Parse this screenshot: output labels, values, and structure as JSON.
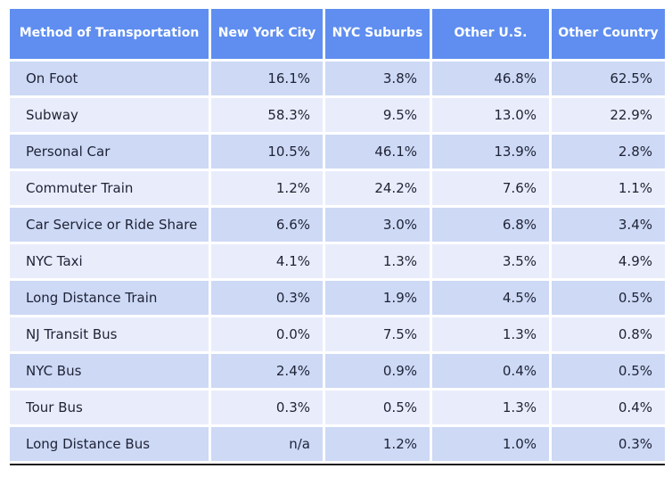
{
  "table": {
    "columns": [
      "Method of Transportation",
      "New York City",
      "NYC Suburbs",
      "Other U.S.",
      "Other Country"
    ],
    "rows": [
      {
        "label": "On Foot",
        "values": [
          "16.1%",
          "3.8%",
          "46.8%",
          "62.5%"
        ]
      },
      {
        "label": "Subway",
        "values": [
          "58.3%",
          "9.5%",
          "13.0%",
          "22.9%"
        ]
      },
      {
        "label": "Personal Car",
        "values": [
          "10.5%",
          "46.1%",
          "13.9%",
          "2.8%"
        ]
      },
      {
        "label": "Commuter Train",
        "values": [
          "1.2%",
          "24.2%",
          "7.6%",
          "1.1%"
        ]
      },
      {
        "label": "Car Service or Ride Share",
        "values": [
          "6.6%",
          "3.0%",
          "6.8%",
          "3.4%"
        ]
      },
      {
        "label": "NYC Taxi",
        "values": [
          "4.1%",
          "1.3%",
          "3.5%",
          "4.9%"
        ]
      },
      {
        "label": "Long Distance Train",
        "values": [
          "0.3%",
          "1.9%",
          "4.5%",
          "0.5%"
        ]
      },
      {
        "label": "NJ Transit Bus",
        "values": [
          "0.0%",
          "7.5%",
          "1.3%",
          "0.8%"
        ]
      },
      {
        "label": "NYC Bus",
        "values": [
          "2.4%",
          "0.9%",
          "0.4%",
          "0.5%"
        ]
      },
      {
        "label": "Tour Bus",
        "values": [
          "0.3%",
          "0.5%",
          "1.3%",
          "0.4%"
        ]
      },
      {
        "label": "Long Distance Bus",
        "values": [
          "n/a",
          "1.2%",
          "1.0%",
          "0.3%"
        ]
      }
    ]
  },
  "colors": {
    "header_bg": "#5F8EF0",
    "header_text": "#FFFFFF",
    "row_dark": "#CDD9F5",
    "row_light": "#E9EDFB",
    "cell_text": "#1E2235",
    "bottom_rule": "#1E1E1E"
  },
  "chart_data": {
    "type": "table",
    "title": "Method of Transportation",
    "columns": [
      "Method of Transportation",
      "New York City",
      "NYC Suburbs",
      "Other U.S.",
      "Other Country"
    ],
    "rows": [
      [
        "On Foot",
        "16.1%",
        "3.8%",
        "46.8%",
        "62.5%"
      ],
      [
        "Subway",
        "58.3%",
        "9.5%",
        "13.0%",
        "22.9%"
      ],
      [
        "Personal Car",
        "10.5%",
        "46.1%",
        "13.9%",
        "2.8%"
      ],
      [
        "Commuter Train",
        "1.2%",
        "24.2%",
        "7.6%",
        "1.1%"
      ],
      [
        "Car Service or Ride Share",
        "6.6%",
        "3.0%",
        "6.8%",
        "3.4%"
      ],
      [
        "NYC Taxi",
        "4.1%",
        "1.3%",
        "3.5%",
        "4.9%"
      ],
      [
        "Long Distance Train",
        "0.3%",
        "1.9%",
        "4.5%",
        "0.5%"
      ],
      [
        "NJ Transit Bus",
        "0.0%",
        "7.5%",
        "1.3%",
        "0.8%"
      ],
      [
        "NYC Bus",
        "2.4%",
        "0.9%",
        "0.4%",
        "0.5%"
      ],
      [
        "Tour Bus",
        "0.3%",
        "0.5%",
        "1.3%",
        "0.4%"
      ],
      [
        "Long Distance Bus",
        "n/a",
        "1.2%",
        "1.0%",
        "0.3%"
      ]
    ]
  }
}
